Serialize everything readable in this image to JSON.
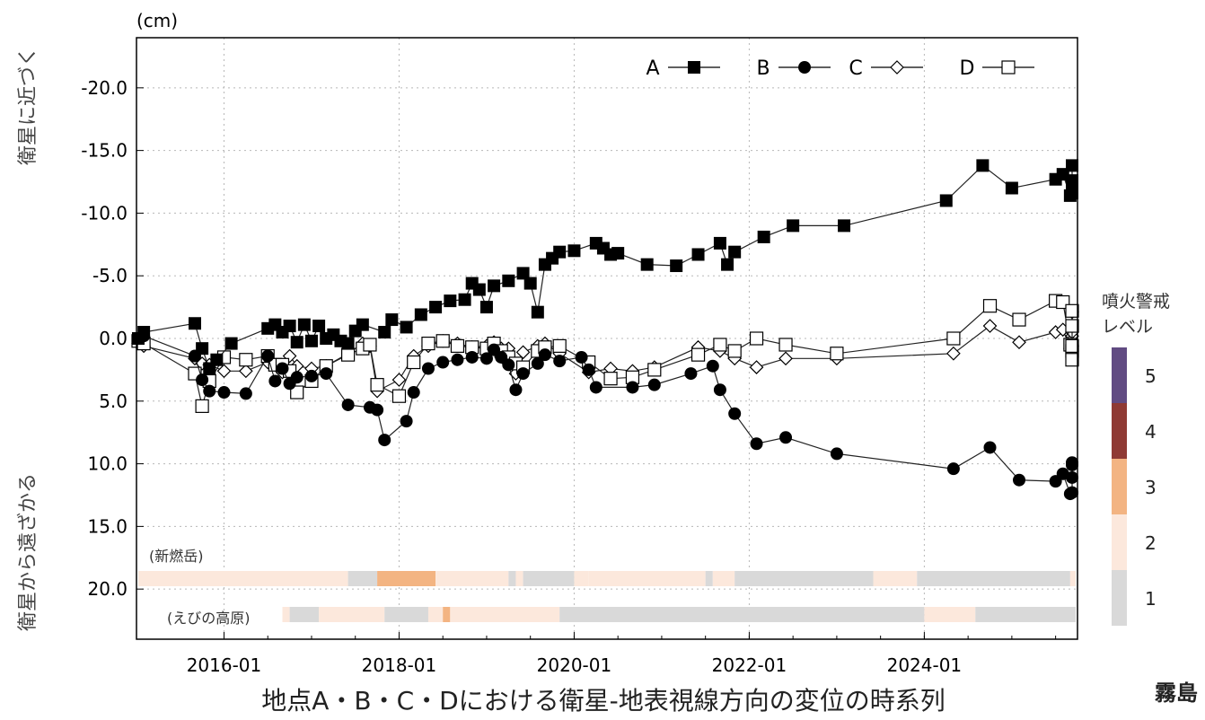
{
  "chart_data": {
    "type": "line",
    "unit_label": "(cm)",
    "y_label_top": "衛星に近づく",
    "y_label_bottom": "衛星から遠ざかる",
    "caption": "地点A・B・C・Dにおける衛星-地表視線方向の変位の時系列",
    "corner_text": "霧島",
    "y_axis_inverted": true,
    "ylim": [
      24,
      -24
    ],
    "xlim": [
      "2015-01",
      "2025-10"
    ],
    "grid": true,
    "legend_position": "top-right",
    "y_ticks": [
      "-20.0",
      "-15.0",
      "-10.0",
      "-5.0",
      "0.0",
      "5.0",
      "10.0",
      "15.0",
      "20.0"
    ],
    "x_ticks": [
      "2016-01",
      "2018-01",
      "2020-01",
      "2022-01",
      "2024-01"
    ],
    "series": [
      {
        "name": "A",
        "marker": "filled-square",
        "points": [
          [
            "2015-01",
            0
          ],
          [
            "2015-02",
            -0.5
          ],
          [
            "2015-09",
            -1.2
          ],
          [
            "2015-10",
            0.8
          ],
          [
            "2015-11",
            2.4
          ],
          [
            "2015-12",
            1.7
          ],
          [
            "2016-02",
            0.4
          ],
          [
            "2016-07",
            -0.8
          ],
          [
            "2016-08",
            -1.1
          ],
          [
            "2016-09",
            -0.5
          ],
          [
            "2016-10",
            -1.0
          ],
          [
            "2016-11",
            0.3
          ],
          [
            "2016-12",
            -1.1
          ],
          [
            "2017-01",
            0.2
          ],
          [
            "2017-02",
            -1.0
          ],
          [
            "2017-03",
            0
          ],
          [
            "2017-04",
            -0.3
          ],
          [
            "2017-05",
            0.2
          ],
          [
            "2017-06",
            0.4
          ],
          [
            "2017-07",
            -0.6
          ],
          [
            "2017-08",
            -1.1
          ],
          [
            "2017-11",
            -0.5
          ],
          [
            "2017-12",
            -1.5
          ],
          [
            "2018-02",
            -0.9
          ],
          [
            "2018-04",
            -1.9
          ],
          [
            "2018-06",
            -2.5
          ],
          [
            "2018-08",
            -3.0
          ],
          [
            "2018-10",
            -3.1
          ],
          [
            "2018-11",
            -4.4
          ],
          [
            "2018-12",
            -3.9
          ],
          [
            "2019-01",
            -2.5
          ],
          [
            "2019-02",
            -4.2
          ],
          [
            "2019-04",
            -4.6
          ],
          [
            "2019-06",
            -5.2
          ],
          [
            "2019-07",
            -4.4
          ],
          [
            "2019-08",
            -2.1
          ],
          [
            "2019-09",
            -5.9
          ],
          [
            "2019-10",
            -6.4
          ],
          [
            "2019-11",
            -6.9
          ],
          [
            "2020-01",
            -7.0
          ],
          [
            "2020-04",
            -7.6
          ],
          [
            "2020-05",
            -7.2
          ],
          [
            "2020-06",
            -6.7
          ],
          [
            "2020-07",
            -6.8
          ],
          [
            "2020-11",
            -5.9
          ],
          [
            "2021-03",
            -5.8
          ],
          [
            "2021-06",
            -6.7
          ],
          [
            "2021-09",
            -7.6
          ],
          [
            "2021-10",
            -5.9
          ],
          [
            "2021-11",
            -6.9
          ],
          [
            "2022-03",
            -8.1
          ],
          [
            "2022-07",
            -9.0
          ],
          [
            "2023-02",
            -9.0
          ],
          [
            "2024-04",
            -11.0
          ],
          [
            "2024-09",
            -13.8
          ],
          [
            "2025-01",
            -12.0
          ],
          [
            "2025-07",
            -12.7
          ],
          [
            "2025-08",
            -13.1
          ],
          [
            "2025-09",
            -11.4
          ],
          [
            "2025-10",
            -11.6
          ],
          [
            "2025-11",
            -12.0
          ],
          [
            "2025-12",
            -12.3
          ],
          [
            "2026-01",
            -13.8
          ],
          [
            "2026-02",
            -12.4
          ],
          [
            "2026-03",
            -12.6
          ]
        ]
      },
      {
        "name": "B",
        "marker": "filled-circle",
        "points": [
          [
            "2015-01",
            0
          ],
          [
            "2015-02",
            -0.2
          ],
          [
            "2015-09",
            1.4
          ],
          [
            "2015-10",
            3.3
          ],
          [
            "2015-11",
            4.2
          ],
          [
            "2016-01",
            4.3
          ],
          [
            "2016-04",
            4.4
          ],
          [
            "2016-07",
            1.4
          ],
          [
            "2016-08",
            3.4
          ],
          [
            "2016-09",
            2.4
          ],
          [
            "2016-10",
            3.6
          ],
          [
            "2016-11",
            3.1
          ],
          [
            "2017-01",
            3.0
          ],
          [
            "2017-03",
            2.8
          ],
          [
            "2017-06",
            5.3
          ],
          [
            "2017-09",
            5.5
          ],
          [
            "2017-10",
            5.7
          ],
          [
            "2017-11",
            8.1
          ],
          [
            "2018-02",
            6.6
          ],
          [
            "2018-03",
            4.3
          ],
          [
            "2018-05",
            2.4
          ],
          [
            "2018-07",
            1.9
          ],
          [
            "2018-09",
            1.7
          ],
          [
            "2018-11",
            1.5
          ],
          [
            "2019-01",
            1.6
          ],
          [
            "2019-02",
            0.9
          ],
          [
            "2019-03",
            1.5
          ],
          [
            "2019-04",
            2.1
          ],
          [
            "2019-05",
            4.1
          ],
          [
            "2019-06",
            2.8
          ],
          [
            "2019-08",
            2.0
          ],
          [
            "2019-09",
            1.3
          ],
          [
            "2019-11",
            1.8
          ],
          [
            "2020-02",
            1.5
          ],
          [
            "2020-03",
            2.5
          ],
          [
            "2020-04",
            3.9
          ],
          [
            "2020-09",
            3.9
          ],
          [
            "2020-12",
            3.7
          ],
          [
            "2021-05",
            2.8
          ],
          [
            "2021-08",
            2.2
          ],
          [
            "2021-09",
            4.1
          ],
          [
            "2021-11",
            6.0
          ],
          [
            "2022-02",
            8.4
          ],
          [
            "2022-06",
            7.9
          ],
          [
            "2023-01",
            9.2
          ],
          [
            "2024-05",
            10.4
          ],
          [
            "2024-10",
            8.7
          ],
          [
            "2025-02",
            11.3
          ],
          [
            "2025-07",
            11.4
          ],
          [
            "2025-08",
            10.8
          ],
          [
            "2025-09",
            12.4
          ],
          [
            "2025-10",
            12.3
          ],
          [
            "2025-11",
            11.1
          ],
          [
            "2025-12",
            10.1
          ],
          [
            "2026-01",
            9.9
          ],
          [
            "2026-03",
            12.3
          ]
        ]
      },
      {
        "name": "C",
        "marker": "open-diamond",
        "points": [
          [
            "2015-01",
            0.4
          ],
          [
            "2015-02",
            0.6
          ],
          [
            "2015-09",
            1.6
          ],
          [
            "2015-10",
            2.0
          ],
          [
            "2015-11",
            2.1
          ],
          [
            "2016-01",
            2.6
          ],
          [
            "2016-04",
            2.6
          ],
          [
            "2016-07",
            1.9
          ],
          [
            "2016-08",
            2.1
          ],
          [
            "2016-09",
            2.7
          ],
          [
            "2016-10",
            1.4
          ],
          [
            "2016-11",
            2.2
          ],
          [
            "2017-01",
            2.4
          ],
          [
            "2017-03",
            2.2
          ],
          [
            "2017-06",
            1.2
          ],
          [
            "2017-08",
            0.4
          ],
          [
            "2017-09",
            0.6
          ],
          [
            "2017-10",
            4.2
          ],
          [
            "2018-01",
            3.3
          ],
          [
            "2018-03",
            1.4
          ],
          [
            "2018-05",
            0.6
          ],
          [
            "2018-07",
            0.2
          ],
          [
            "2018-09",
            0.4
          ],
          [
            "2018-11",
            0.7
          ],
          [
            "2019-01",
            0.6
          ],
          [
            "2019-02",
            0.3
          ],
          [
            "2019-03",
            0.8
          ],
          [
            "2019-04",
            0.8
          ],
          [
            "2019-05",
            2.8
          ],
          [
            "2019-06",
            1.1
          ],
          [
            "2019-08",
            0.6
          ],
          [
            "2019-09",
            0.4
          ],
          [
            "2019-11",
            1.2
          ],
          [
            "2020-03",
            2.7
          ],
          [
            "2020-06",
            2.4
          ],
          [
            "2020-09",
            2.6
          ],
          [
            "2020-12",
            2.3
          ],
          [
            "2021-06",
            0.7
          ],
          [
            "2021-09",
            1.0
          ],
          [
            "2021-11",
            1.6
          ],
          [
            "2022-02",
            2.3
          ],
          [
            "2022-06",
            1.6
          ],
          [
            "2023-01",
            1.6
          ],
          [
            "2024-05",
            1.2
          ],
          [
            "2024-10",
            -1.0
          ],
          [
            "2025-02",
            0.3
          ],
          [
            "2025-07",
            -0.5
          ],
          [
            "2025-08",
            -0.7
          ],
          [
            "2025-09",
            0.8
          ],
          [
            "2025-10",
            0.6
          ],
          [
            "2025-11",
            -0.2
          ],
          [
            "2025-12",
            -0.5
          ],
          [
            "2026-01",
            -2.1
          ],
          [
            "2026-03",
            1.0
          ]
        ]
      },
      {
        "name": "D",
        "marker": "open-square",
        "points": [
          [
            "2015-01",
            0.2
          ],
          [
            "2015-02",
            0.4
          ],
          [
            "2015-09",
            2.8
          ],
          [
            "2015-10",
            5.4
          ],
          [
            "2015-11",
            3.4
          ],
          [
            "2016-01",
            1.5
          ],
          [
            "2016-04",
            1.7
          ],
          [
            "2016-07",
            1.4
          ],
          [
            "2016-08",
            2.1
          ],
          [
            "2016-09",
            2.1
          ],
          [
            "2016-10",
            2.6
          ],
          [
            "2016-11",
            4.3
          ],
          [
            "2017-01",
            3.4
          ],
          [
            "2017-03",
            2.2
          ],
          [
            "2017-06",
            1.3
          ],
          [
            "2017-08",
            0.8
          ],
          [
            "2017-09",
            0.5
          ],
          [
            "2017-10",
            3.7
          ],
          [
            "2018-01",
            4.6
          ],
          [
            "2018-03",
            1.9
          ],
          [
            "2018-05",
            0.4
          ],
          [
            "2018-07",
            0.2
          ],
          [
            "2018-09",
            0.6
          ],
          [
            "2018-11",
            0.7
          ],
          [
            "2019-01",
            0.8
          ],
          [
            "2019-02",
            0.4
          ],
          [
            "2019-03",
            1.0
          ],
          [
            "2019-04",
            1.5
          ],
          [
            "2019-05",
            2.0
          ],
          [
            "2019-06",
            2.3
          ],
          [
            "2019-08",
            1.0
          ],
          [
            "2019-09",
            0.7
          ],
          [
            "2019-11",
            0.6
          ],
          [
            "2020-03",
            1.9
          ],
          [
            "2020-06",
            3.2
          ],
          [
            "2020-09",
            3.1
          ],
          [
            "2020-12",
            2.5
          ],
          [
            "2021-06",
            1.3
          ],
          [
            "2021-09",
            0.5
          ],
          [
            "2021-11",
            1.0
          ],
          [
            "2022-02",
            0
          ],
          [
            "2022-06",
            0.5
          ],
          [
            "2023-01",
            1.2
          ],
          [
            "2024-05",
            0
          ],
          [
            "2024-10",
            -2.6
          ],
          [
            "2025-02",
            -1.5
          ],
          [
            "2025-07",
            -3.0
          ],
          [
            "2025-08",
            -2.9
          ],
          [
            "2025-09",
            0.5
          ],
          [
            "2025-10",
            1.0
          ],
          [
            "2025-11",
            1.7
          ],
          [
            "2025-12",
            -1.0
          ],
          [
            "2026-01",
            -2.2
          ],
          [
            "2026-03",
            0.6
          ]
        ]
      }
    ],
    "alert_legend": {
      "title_line1": "噴火警戒",
      "title_line2": "レベル",
      "levels": [
        {
          "level": "5",
          "color": "#614b82"
        },
        {
          "level": "4",
          "color": "#8f3a34"
        },
        {
          "level": "3",
          "color": "#f3b482"
        },
        {
          "level": "2",
          "color": "#fce8dc"
        },
        {
          "level": "1",
          "color": "#d9d9d9"
        }
      ]
    },
    "alert_bars": [
      {
        "label": "(新燃岳)",
        "segments": [
          [
            "2015-01",
            "2017-06",
            2
          ],
          [
            "2017-06",
            "2017-10",
            1
          ],
          [
            "2017-10",
            "2018-06",
            3
          ],
          [
            "2018-06",
            "2019-04",
            2
          ],
          [
            "2019-04",
            "2019-05",
            1
          ],
          [
            "2019-05",
            "2019-06",
            2
          ],
          [
            "2019-06",
            "2020-01",
            1
          ],
          [
            "2020-01",
            "2020-03",
            2
          ],
          [
            "2020-03",
            "2021-07",
            2
          ],
          [
            "2021-07",
            "2021-08",
            1
          ],
          [
            "2021-08",
            "2021-11",
            2
          ],
          [
            "2021-11",
            "2023-06",
            1
          ],
          [
            "2023-06",
            "2023-12",
            2
          ],
          [
            "2023-12",
            "2025-09",
            1
          ],
          [
            "2025-09",
            "2026-01",
            2
          ],
          [
            "2026-01",
            "2026-03",
            3
          ],
          [
            "2026-03",
            "2026-04",
            2
          ],
          [
            "2026-04",
            "2026-10",
            3
          ]
        ]
      },
      {
        "label": "(えびの高原)",
        "segments": [
          [
            "2016-09",
            "2016-10",
            2
          ],
          [
            "2016-10",
            "2017-02",
            1
          ],
          [
            "2017-02",
            "2017-11",
            2
          ],
          [
            "2017-11",
            "2018-05",
            1
          ],
          [
            "2018-05",
            "2018-07",
            2
          ],
          [
            "2018-07",
            "2018-08",
            3
          ],
          [
            "2018-08",
            "2019-11",
            2
          ],
          [
            "2019-11",
            "2024-01",
            1
          ],
          [
            "2024-01",
            "2024-08",
            2
          ],
          [
            "2024-08",
            "2026-10",
            1
          ]
        ]
      }
    ]
  }
}
